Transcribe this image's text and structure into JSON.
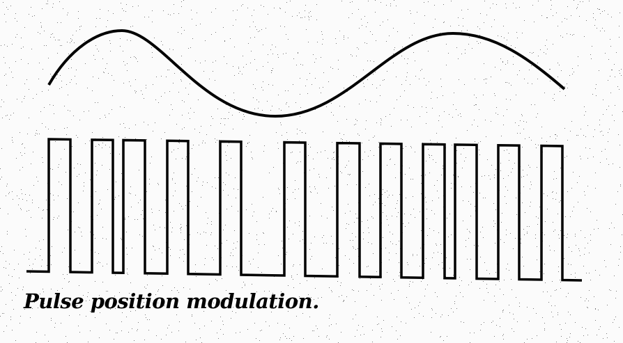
{
  "caption": "Pulse position modulation.",
  "colors": {
    "ink": "#000000",
    "paper": "#ffffff"
  },
  "diagram": {
    "top_trace": "sine-modulating-signal",
    "bottom_trace": "pulse-train",
    "pulse_count": 12
  }
}
